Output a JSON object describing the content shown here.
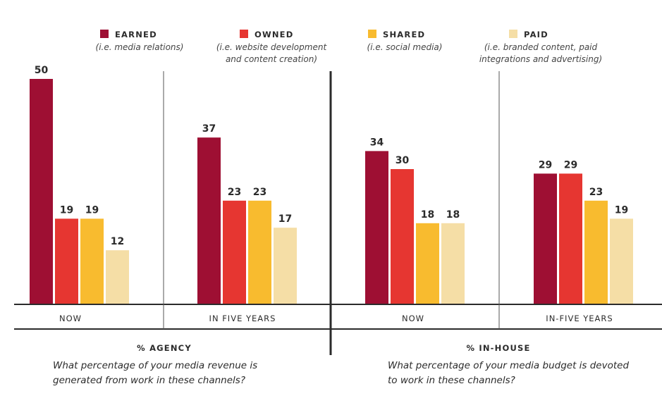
{
  "chart_data": {
    "type": "bar",
    "title": "",
    "xlabel": "",
    "ylabel": "",
    "ylim": [
      0,
      50
    ],
    "grid": false,
    "legend_position": "top",
    "series": [
      {
        "name": "EARNED",
        "subtitle": [
          "(i.e. media relations)"
        ],
        "color": "#9e0f33"
      },
      {
        "name": "OWNED",
        "subtitle": [
          "(i.e. website development",
          "and content creation)"
        ],
        "color": "#e63631"
      },
      {
        "name": "SHARED",
        "subtitle": [
          "(i.e. social media)"
        ],
        "color": "#f8bb2f"
      },
      {
        "name": "PAID",
        "subtitle": [
          "(i.e. branded content, paid",
          "integrations and advertising)"
        ],
        "color": "#f5dea6"
      }
    ],
    "panels": [
      {
        "title": "% AGENCY",
        "question": [
          "What percentage of your media revenue is",
          "generated from work in these channels?"
        ],
        "groups": [
          {
            "category": "NOW",
            "values": [
              50,
              19,
              19,
              12
            ]
          },
          {
            "category": "IN FIVE YEARS",
            "values": [
              37,
              23,
              23,
              17
            ]
          }
        ]
      },
      {
        "title": "% IN-HOUSE",
        "question": [
          "What percentage of your media budget is devoted",
          "to work in these channels?"
        ],
        "groups": [
          {
            "category": "NOW",
            "values": [
              34,
              30,
              18,
              18
            ]
          },
          {
            "category": "IN-FIVE YEARS",
            "values": [
              29,
              29,
              23,
              19
            ]
          }
        ]
      }
    ]
  }
}
